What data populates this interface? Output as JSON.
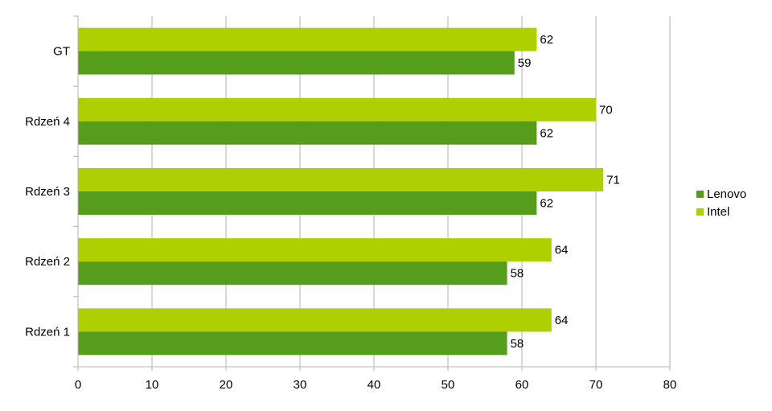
{
  "chart_data": {
    "type": "bar",
    "orientation": "horizontal",
    "categories": [
      "Rdzeń 1",
      "Rdzeń 2",
      "Rdzeń 3",
      "Rdzeń 4",
      "GT"
    ],
    "series": [
      {
        "name": "Lenovo",
        "color": "#579d1c",
        "values": [
          58,
          58,
          62,
          62,
          59
        ]
      },
      {
        "name": "Intel",
        "color": "#aecf00",
        "values": [
          64,
          64,
          71,
          70,
          62
        ]
      }
    ],
    "xlim": [
      0,
      80
    ],
    "xticks": [
      0,
      10,
      20,
      30,
      40,
      50,
      60,
      70,
      80
    ],
    "grid": true,
    "legend": "right",
    "data_labels": true
  }
}
